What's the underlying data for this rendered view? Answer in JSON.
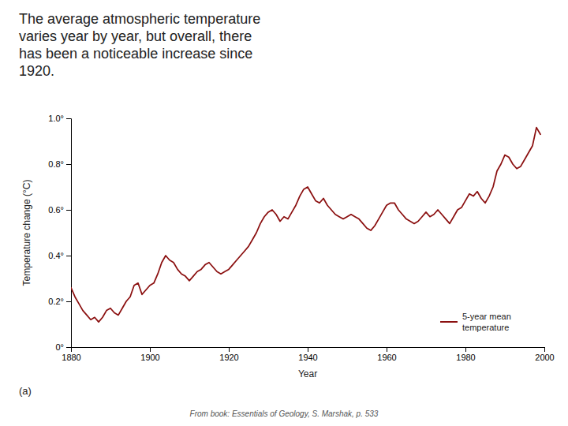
{
  "chart_data": {
    "type": "line",
    "title": "The average atmospheric temperature\nvaries year by year, but overall, there\nhas been a noticeable increase since\n1920.",
    "annotations": [
      "(a)",
      "From book: Essentials of Geology, S. Marshak, p. 533"
    ],
    "x_label": "Year",
    "y_label": "Temperature change (°C)",
    "x": [
      1880,
      1881,
      1882,
      1883,
      1884,
      1885,
      1886,
      1887,
      1888,
      1889,
      1890,
      1891,
      1892,
      1893,
      1894,
      1895,
      1896,
      1897,
      1898,
      1899,
      1900,
      1901,
      1902,
      1903,
      1904,
      1905,
      1906,
      1907,
      1908,
      1909,
      1910,
      1911,
      1912,
      1913,
      1914,
      1915,
      1916,
      1917,
      1918,
      1919,
      1920,
      1921,
      1922,
      1923,
      1924,
      1925,
      1926,
      1927,
      1928,
      1929,
      1930,
      1931,
      1932,
      1933,
      1934,
      1935,
      1936,
      1937,
      1938,
      1939,
      1940,
      1941,
      1942,
      1943,
      1944,
      1945,
      1946,
      1947,
      1948,
      1949,
      1950,
      1951,
      1952,
      1953,
      1954,
      1955,
      1956,
      1957,
      1958,
      1959,
      1960,
      1961,
      1962,
      1963,
      1964,
      1965,
      1966,
      1967,
      1968,
      1969,
      1970,
      1971,
      1972,
      1973,
      1974,
      1975,
      1976,
      1977,
      1978,
      1979,
      1980,
      1981,
      1982,
      1983,
      1984,
      1985,
      1986,
      1987,
      1988,
      1989,
      1990,
      1991,
      1992,
      1993,
      1994,
      1995,
      1996,
      1997,
      1998,
      1999
    ],
    "series": [
      {
        "name": "5-year mean\ntemperature",
        "color": "#8B1010",
        "values": [
          0.26,
          0.22,
          0.19,
          0.16,
          0.14,
          0.12,
          0.13,
          0.11,
          0.13,
          0.16,
          0.17,
          0.15,
          0.14,
          0.17,
          0.2,
          0.22,
          0.27,
          0.28,
          0.23,
          0.25,
          0.27,
          0.28,
          0.32,
          0.37,
          0.4,
          0.38,
          0.37,
          0.34,
          0.32,
          0.31,
          0.29,
          0.31,
          0.33,
          0.34,
          0.36,
          0.37,
          0.35,
          0.33,
          0.32,
          0.33,
          0.34,
          0.36,
          0.38,
          0.4,
          0.42,
          0.44,
          0.47,
          0.5,
          0.54,
          0.57,
          0.59,
          0.6,
          0.58,
          0.55,
          0.57,
          0.56,
          0.59,
          0.62,
          0.66,
          0.69,
          0.7,
          0.67,
          0.64,
          0.63,
          0.65,
          0.62,
          0.6,
          0.58,
          0.57,
          0.56,
          0.57,
          0.58,
          0.57,
          0.56,
          0.54,
          0.52,
          0.51,
          0.53,
          0.56,
          0.59,
          0.62,
          0.63,
          0.63,
          0.6,
          0.58,
          0.56,
          0.55,
          0.54,
          0.55,
          0.57,
          0.59,
          0.57,
          0.58,
          0.6,
          0.58,
          0.56,
          0.54,
          0.57,
          0.6,
          0.61,
          0.64,
          0.67,
          0.66,
          0.68,
          0.65,
          0.63,
          0.66,
          0.7,
          0.77,
          0.8,
          0.84,
          0.83,
          0.8,
          0.78,
          0.79,
          0.82,
          0.85,
          0.88,
          0.96,
          0.93
        ]
      }
    ],
    "xlim": [
      1880,
      2000
    ],
    "ylim": [
      0,
      1.0
    ],
    "xticks": [
      1880,
      1900,
      1920,
      1940,
      1960,
      1980,
      2000
    ],
    "yticks": [
      {
        "value": 0,
        "label": "0°"
      },
      {
        "value": 0.2,
        "label": "0.2°"
      },
      {
        "value": 0.4,
        "label": "0.4°"
      },
      {
        "value": 0.6,
        "label": "0.6°"
      },
      {
        "value": 0.8,
        "label": "0.8°"
      },
      {
        "value": 1.0,
        "label": "1.0°"
      }
    ],
    "grid": false,
    "legend": "lower right"
  }
}
